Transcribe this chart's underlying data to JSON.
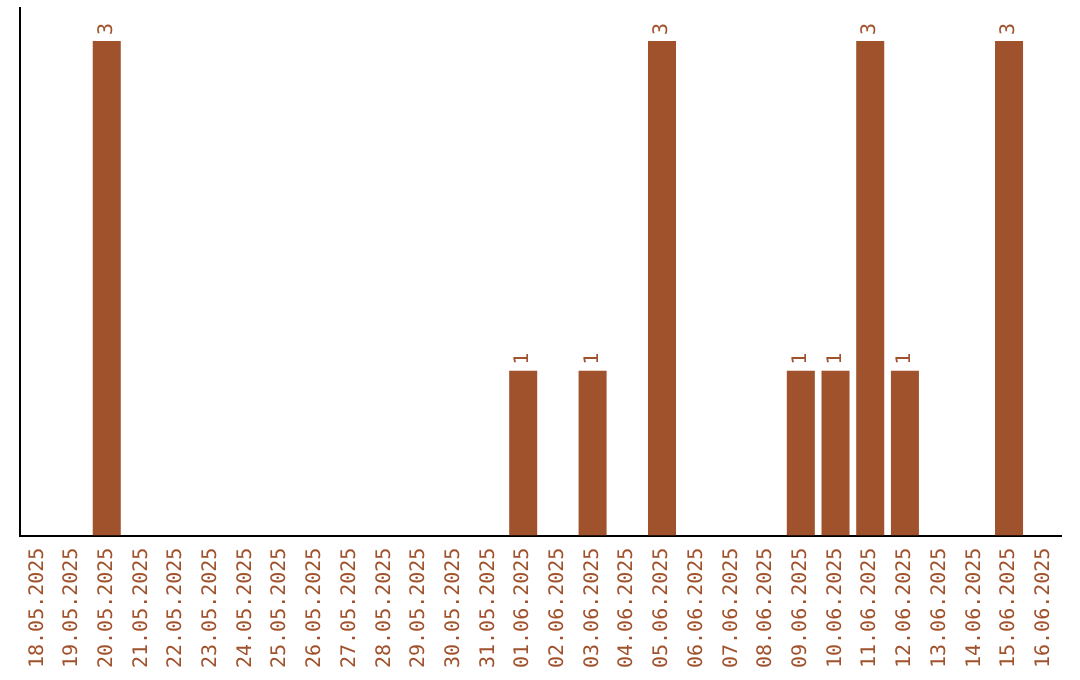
{
  "chart_data": {
    "type": "bar",
    "categories": [
      "18.05.2025",
      "19.05.2025",
      "20.05.2025",
      "21.05.2025",
      "22.05.2025",
      "23.05.2025",
      "24.05.2025",
      "25.05.2025",
      "26.05.2025",
      "27.05.2025",
      "28.05.2025",
      "29.05.2025",
      "30.05.2025",
      "31.05.2025",
      "01.06.2025",
      "02.06.2025",
      "03.06.2025",
      "04.06.2025",
      "05.06.2025",
      "06.06.2025",
      "07.06.2025",
      "08.06.2025",
      "09.06.2025",
      "10.06.2025",
      "11.06.2025",
      "12.06.2025",
      "13.06.2025",
      "14.06.2025",
      "15.06.2025",
      "16.06.2025"
    ],
    "values": [
      null,
      null,
      3,
      null,
      null,
      null,
      null,
      null,
      null,
      null,
      null,
      null,
      null,
      null,
      1,
      null,
      1,
      null,
      3,
      null,
      null,
      null,
      1,
      1,
      3,
      1,
      null,
      null,
      3,
      null
    ],
    "color": "#a0522d",
    "ylim": [
      0,
      3.2
    ],
    "data_labels": true,
    "tick_labels": "x",
    "grid": false,
    "legend": false
  }
}
